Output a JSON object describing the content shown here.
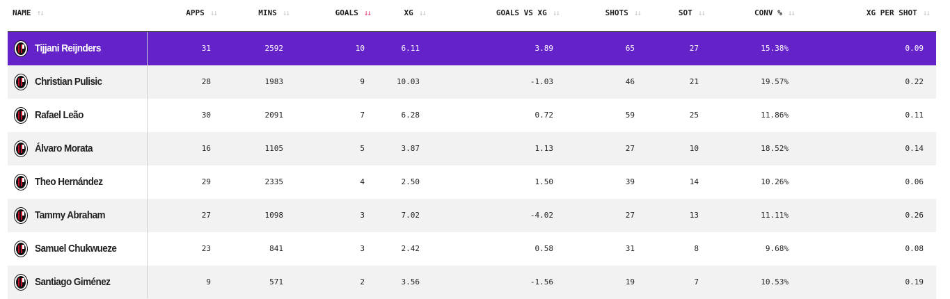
{
  "headers": {
    "name": "NAME",
    "apps": "APPS",
    "mins": "MINS",
    "goals": "GOALS",
    "xg": "XG",
    "goals_vs_xg": "GOALS VS XG",
    "shots": "SHOTS",
    "sot": "SOT",
    "conv": "CONV %",
    "xg_per_shot": "XG PER SHOT"
  },
  "sort": {
    "column": "goals",
    "direction": "descending",
    "active_color": "#e0306f",
    "inactive_color": "#c4c4c4"
  },
  "highlight_color": "#6422c9",
  "rows": [
    {
      "name": "Tijjani Reijnders",
      "apps": "31",
      "mins": "2592",
      "goals": "10",
      "xg": "6.11",
      "goals_vs_xg": "3.89",
      "shots": "65",
      "sot": "27",
      "conv": "15.38%",
      "xg_per_shot": "0.09"
    },
    {
      "name": "Christian Pulisic",
      "apps": "28",
      "mins": "1983",
      "goals": "9",
      "xg": "10.03",
      "goals_vs_xg": "-1.03",
      "shots": "46",
      "sot": "21",
      "conv": "19.57%",
      "xg_per_shot": "0.22"
    },
    {
      "name": "Rafael Leão",
      "apps": "30",
      "mins": "2091",
      "goals": "7",
      "xg": "6.28",
      "goals_vs_xg": "0.72",
      "shots": "59",
      "sot": "25",
      "conv": "11.86%",
      "xg_per_shot": "0.11"
    },
    {
      "name": "Álvaro Morata",
      "apps": "16",
      "mins": "1105",
      "goals": "5",
      "xg": "3.87",
      "goals_vs_xg": "1.13",
      "shots": "27",
      "sot": "10",
      "conv": "18.52%",
      "xg_per_shot": "0.14"
    },
    {
      "name": "Theo Hernández",
      "apps": "29",
      "mins": "2335",
      "goals": "4",
      "xg": "2.50",
      "goals_vs_xg": "1.50",
      "shots": "39",
      "sot": "14",
      "conv": "10.26%",
      "xg_per_shot": "0.06"
    },
    {
      "name": "Tammy Abraham",
      "apps": "27",
      "mins": "1098",
      "goals": "3",
      "xg": "7.02",
      "goals_vs_xg": "-4.02",
      "shots": "27",
      "sot": "13",
      "conv": "11.11%",
      "xg_per_shot": "0.26"
    },
    {
      "name": "Samuel Chukwueze",
      "apps": "23",
      "mins": "841",
      "goals": "3",
      "xg": "2.42",
      "goals_vs_xg": "0.58",
      "shots": "31",
      "sot": "8",
      "conv": "9.68%",
      "xg_per_shot": "0.08"
    },
    {
      "name": "Santiago Giménez",
      "apps": "9",
      "mins": "571",
      "goals": "2",
      "xg": "3.56",
      "goals_vs_xg": "-1.56",
      "shots": "19",
      "sot": "7",
      "conv": "10.53%",
      "xg_per_shot": "0.19"
    }
  ]
}
